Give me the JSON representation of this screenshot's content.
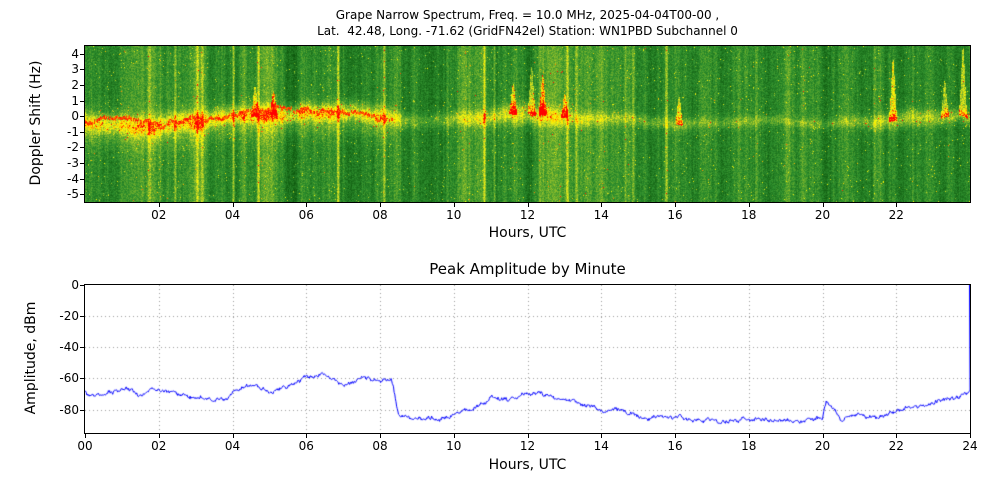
{
  "figure": {
    "background": "#ffffff"
  },
  "spectrogram": {
    "title_line1": "Grape Narrow Spectrum, Freq. = 10.0 MHz, 2025-04-04T00-00 ,",
    "title_line2": "Lat.  42.48, Long. -71.62 (GridFN42el) Station: WN1PBD Subchannel 0",
    "ylabel": "Doppler Shift (Hz)",
    "xlabel": "Hours, UTC"
  },
  "amplitude": {
    "title": "Peak Amplitude by Minute",
    "ylabel": "Amplitude, dBm",
    "xlabel": "Hours, UTC"
  },
  "chart_data": [
    {
      "type": "heatmap",
      "subtype": "doppler-spectrogram",
      "title": "Grape Narrow Spectrum, Freq. = 10.0 MHz, 2025-04-04T00-00 , Lat. 42.48, Long. -71.62 (GridFN42el) Station: WN1PBD Subchannel 0",
      "xlabel": "Hours, UTC",
      "ylabel": "Doppler Shift (Hz)",
      "x_range": [
        0,
        24
      ],
      "y_range": [
        -5.5,
        4.5
      ],
      "xticks": {
        "values": [
          2,
          4,
          6,
          8,
          10,
          12,
          14,
          16,
          18,
          20,
          22
        ],
        "labels": [
          "02",
          "04",
          "06",
          "08",
          "10",
          "12",
          "14",
          "16",
          "18",
          "20",
          "22"
        ]
      },
      "yticks": {
        "values": [
          4,
          3,
          2,
          1,
          0,
          -1,
          -2,
          -3,
          -4,
          -5
        ],
        "labels": [
          "4",
          "3",
          "2",
          "1",
          "0",
          "-1",
          "-2",
          "-3",
          "-4",
          "-5"
        ]
      },
      "colormap": [
        [
          0,
          "#084f08"
        ],
        [
          0.35,
          "#2e8f2e"
        ],
        [
          0.55,
          "#7ab52c"
        ],
        [
          0.7,
          "#d9e021"
        ],
        [
          0.8,
          "#ffff00"
        ],
        [
          0.9,
          "#ffa500"
        ],
        [
          1,
          "#ff0000"
        ]
      ],
      "band_center_hourly": [
        -0.4,
        -0.5,
        -0.6,
        -0.3,
        -0.1,
        0.1,
        0.2,
        0.2,
        -0.2,
        -0.3,
        -0.2,
        -0.1,
        0.0,
        -0.1,
        -0.2,
        -0.2,
        -0.3,
        -0.3,
        -0.3,
        -0.3,
        -0.3,
        -0.3,
        -0.2,
        -0.1,
        0.0
      ],
      "band_intensity_hourly": [
        0.85,
        0.8,
        0.8,
        0.85,
        0.85,
        0.9,
        0.9,
        0.9,
        0.85,
        0.3,
        0.45,
        0.6,
        0.7,
        0.55,
        0.45,
        0.38,
        0.4,
        0.35,
        0.38,
        0.33,
        0.33,
        0.45,
        0.6,
        0.55,
        0.5
      ],
      "band_width_hourly": [
        0.5,
        0.5,
        0.55,
        0.5,
        0.45,
        0.45,
        0.45,
        0.45,
        0.5,
        0.3,
        0.35,
        0.4,
        0.5,
        0.4,
        0.3,
        0.25,
        0.3,
        0.25,
        0.25,
        0.22,
        0.22,
        0.3,
        0.4,
        0.35,
        0.3
      ],
      "red_trace": {
        "t_start": 0,
        "t_end": 8.35,
        "half_width_hz": 0.09
      },
      "spikes": [
        {
          "t": 4.6,
          "extent_hz": 2.0
        },
        {
          "t": 5.1,
          "extent_hz": 1.6
        },
        {
          "t": 11.6,
          "extent_hz": 2.0
        },
        {
          "t": 12.1,
          "extent_hz": 3.2
        },
        {
          "t": 12.4,
          "extent_hz": 2.6
        },
        {
          "t": 13.0,
          "extent_hz": 1.6
        },
        {
          "t": 16.1,
          "extent_hz": 1.8
        },
        {
          "t": 21.9,
          "extent_hz": 4.0
        },
        {
          "t": 23.3,
          "extent_hz": 2.4
        },
        {
          "t": 23.8,
          "extent_hz": 4.5
        }
      ],
      "dark_interval_hours": [
        8.55,
        9.7
      ],
      "notes": "carrier band near 0 Hz; strong with red core 00:00-08:20; weak 08:30-10:00; moderate 10:00-13:30; faint 13:30-21:00; moderate 21:00-24:00"
    },
    {
      "type": "line",
      "title": "Peak Amplitude by Minute",
      "xlabel": "Hours, UTC",
      "ylabel": "Amplitude, dBm",
      "x_range": [
        0,
        24
      ],
      "y_range": [
        -95,
        0
      ],
      "xticks": {
        "values": [
          0,
          2,
          4,
          6,
          8,
          10,
          12,
          14,
          16,
          18,
          20,
          22,
          24
        ],
        "labels": [
          "00",
          "02",
          "04",
          "06",
          "08",
          "10",
          "12",
          "14",
          "16",
          "18",
          "20",
          "22",
          "24"
        ]
      },
      "yticks": {
        "values": [
          0,
          -20,
          -40,
          -60,
          -80
        ],
        "labels": [
          "0",
          "-20",
          "-40",
          "-60",
          "-80"
        ]
      },
      "line_color": "#0000ff",
      "grid": true,
      "series": [
        {
          "name": "peak_amplitude_dbm",
          "x": [
            0,
            0.5,
            1,
            1.5,
            2,
            2.5,
            3,
            3.5,
            4,
            4.5,
            5,
            5.5,
            6,
            6.5,
            7,
            7.5,
            8,
            8.3,
            8.5,
            9,
            9.5,
            10,
            10.5,
            11,
            11.5,
            12,
            12.5,
            13,
            13.5,
            14,
            14.5,
            15,
            15.5,
            16,
            16.5,
            17,
            17.5,
            18,
            18.5,
            19,
            19.5,
            20,
            20.1,
            20.5,
            21,
            21.5,
            22,
            22.5,
            23,
            23.5,
            24
          ],
          "y": [
            -68,
            -72,
            -67,
            -71,
            -66,
            -70,
            -73,
            -74,
            -70,
            -64,
            -69,
            -66,
            -59,
            -57,
            -63,
            -60,
            -62,
            -60,
            -84,
            -86,
            -85,
            -83,
            -80,
            -72,
            -74,
            -71,
            -70,
            -74,
            -77,
            -80,
            -82,
            -84,
            -85,
            -86,
            -87,
            -86,
            -87,
            -86,
            -87,
            -86,
            -87,
            -86,
            -75,
            -85,
            -85,
            -84,
            -80,
            -78,
            -76,
            -72,
            -70
          ]
        }
      ],
      "end_spike": {
        "x": 24,
        "to_y": 0
      }
    }
  ]
}
